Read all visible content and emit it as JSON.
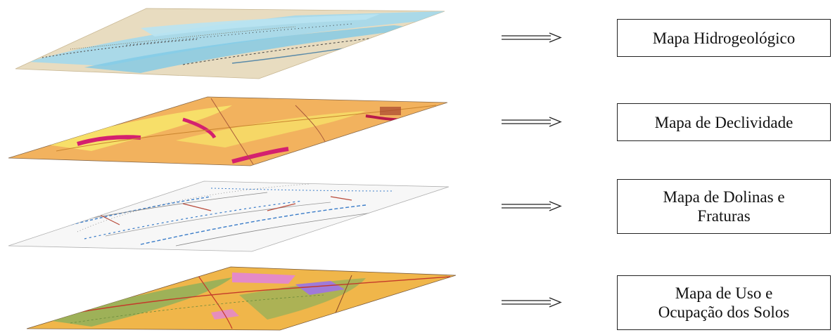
{
  "layers": [
    {
      "id": "hidrogeologico",
      "lines": [
        "Mapa Hidrogeológico"
      ]
    },
    {
      "id": "declividade",
      "lines": [
        "Mapa de Declividade"
      ]
    },
    {
      "id": "dolinas",
      "lines": [
        "Mapa de Dolinas e",
        "Fraturas"
      ]
    },
    {
      "id": "uso",
      "lines": [
        "Mapa de Uso e",
        "Ocupação dos Solos"
      ]
    }
  ],
  "colors": {
    "hydro_base": "#e8dcc0",
    "hydro_water": "#9fd8ee",
    "slope_base": "#f2b25e",
    "slope_light": "#f7e36a",
    "slope_high": "#d4206f",
    "dolinas_base": "#f7f7f7",
    "dolinas_blue": "#3a7cc8",
    "dolinas_red": "#b84a3a",
    "uso_base": "#f0b64a",
    "uso_green": "#8fb05a",
    "uso_pink": "#e48ac8",
    "uso_purple": "#a07ad8"
  }
}
